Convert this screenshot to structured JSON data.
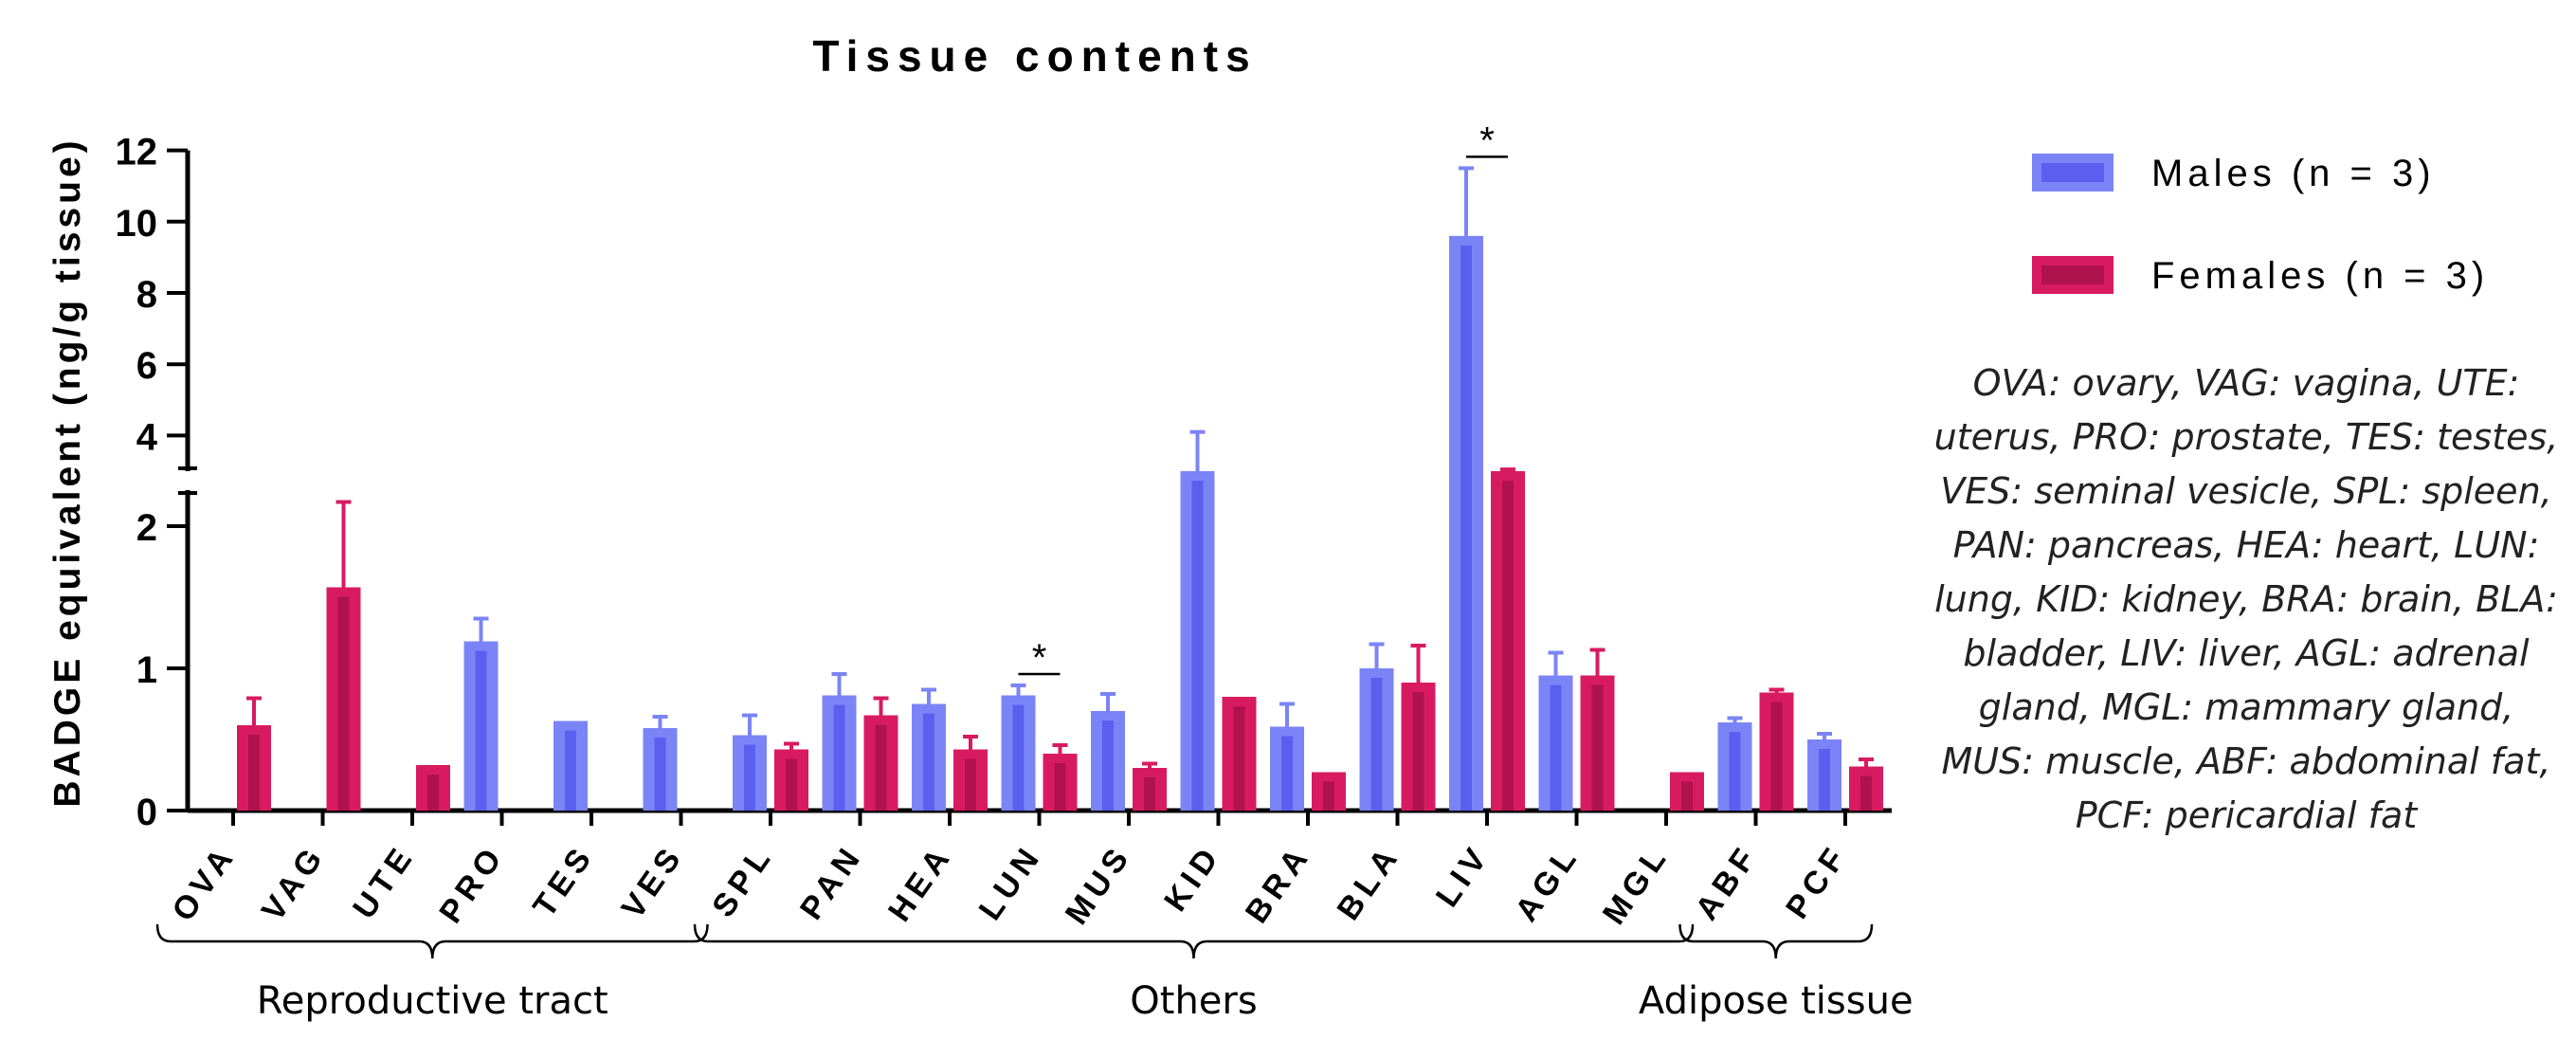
{
  "chart_data": {
    "type": "bar",
    "title": "Tissue contents",
    "ylabel": "BADGE equivalent (ng/g tissue)",
    "xlabel": "",
    "y_axis_break": true,
    "ylim_lower": [
      0,
      2
    ],
    "ylim_upper": [
      3,
      12
    ],
    "yticks_lower": [
      "0",
      "1",
      "2"
    ],
    "yticks_upper": [
      "4",
      "6",
      "8",
      "10",
      "12"
    ],
    "categories": [
      "OVA",
      "VAG",
      "UTE",
      "PRO",
      "TES",
      "VES",
      "SPL",
      "PAN",
      "HEA",
      "LUN",
      "MUS",
      "KID",
      "BRA",
      "BLA",
      "LIV",
      "AGL",
      "MGL",
      "ABF",
      "PCF"
    ],
    "series": [
      {
        "name": "Males (n = 3)",
        "color": "#7b84f7",
        "inner_color": "#5b5ff0",
        "values": [
          null,
          null,
          null,
          1.19,
          0.63,
          0.58,
          0.53,
          0.81,
          0.75,
          0.81,
          0.7,
          3.0,
          0.59,
          1.0,
          9.6,
          0.95,
          null,
          0.62,
          0.5
        ],
        "errors": [
          null,
          null,
          null,
          0.16,
          0,
          0.08,
          0.14,
          0.15,
          0.1,
          0.07,
          0.12,
          1.1,
          0.16,
          0.17,
          1.9,
          0.16,
          null,
          0.03,
          0.04
        ]
      },
      {
        "name": "Females (n = 3)",
        "color": "#d81b60",
        "inner_color": "#b0124c",
        "values": [
          0.6,
          1.57,
          0.32,
          null,
          null,
          null,
          0.43,
          0.67,
          0.43,
          0.4,
          0.3,
          0.8,
          0.27,
          0.9,
          3.0,
          0.95,
          0.27,
          0.83,
          0.31
        ],
        "errors": [
          0.19,
          0.6,
          0,
          null,
          null,
          null,
          0.04,
          0.12,
          0.09,
          0.06,
          0.03,
          0,
          0,
          0.26,
          0.05,
          0.18,
          0,
          0.02,
          0.05
        ]
      }
    ],
    "significance": [
      {
        "category": "LUN",
        "label": "*"
      },
      {
        "category": "LIV",
        "label": "*"
      }
    ],
    "groups": [
      {
        "label": "Reproductive tract",
        "from": "OVA",
        "to": "VES"
      },
      {
        "label": "Others",
        "from": "SPL",
        "to": "MGL"
      },
      {
        "label": "Adipose tissue",
        "from": "ABF",
        "to": "PCF"
      }
    ],
    "legend_position": "right",
    "abbreviations_note": "OVA: ovary, VAG: vagina, UTE: uterus, PRO: prostate, TES: testes, VES: seminal vesicle, SPL: spleen, PAN: pancreas, HEA: heart, LUN: lung, KID: kidney, BRA: brain, BLA: bladder, LIV: liver, AGL: adrenal gland, MGL: mammary gland, MUS: muscle, ABF: abdominal fat, PCF: pericardial fat"
  }
}
